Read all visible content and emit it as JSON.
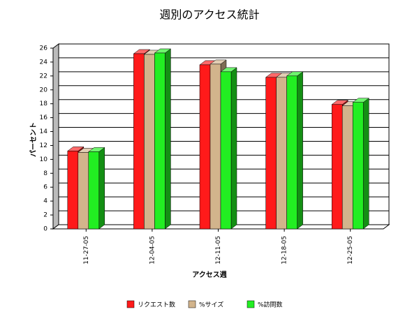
{
  "chart_data": {
    "type": "bar3d",
    "title": "週別のアクセス統計",
    "x_label": "アクセス週",
    "y_label": "パーセント",
    "categories": [
      "11-27-05",
      "12-04-05",
      "12-11-05",
      "12-18-05",
      "12-25-05"
    ],
    "series": [
      {
        "name": "リクエスト数",
        "color": "#ff1a1a",
        "values": [
          11.2,
          25.2,
          23.6,
          21.8,
          17.9
        ]
      },
      {
        "name": "%サイズ",
        "color": "#d2b48c",
        "values": [
          11.0,
          25.1,
          23.7,
          21.8,
          17.7
        ]
      },
      {
        "name": "%訪問数",
        "color": "#22ee22",
        "values": [
          11.1,
          25.3,
          22.6,
          22.0,
          18.2
        ]
      }
    ],
    "ylim": [
      0,
      26
    ],
    "yticks": [
      0,
      2,
      4,
      6,
      8,
      10,
      12,
      14,
      16,
      18,
      20,
      22,
      24,
      26
    ],
    "grid": true
  }
}
